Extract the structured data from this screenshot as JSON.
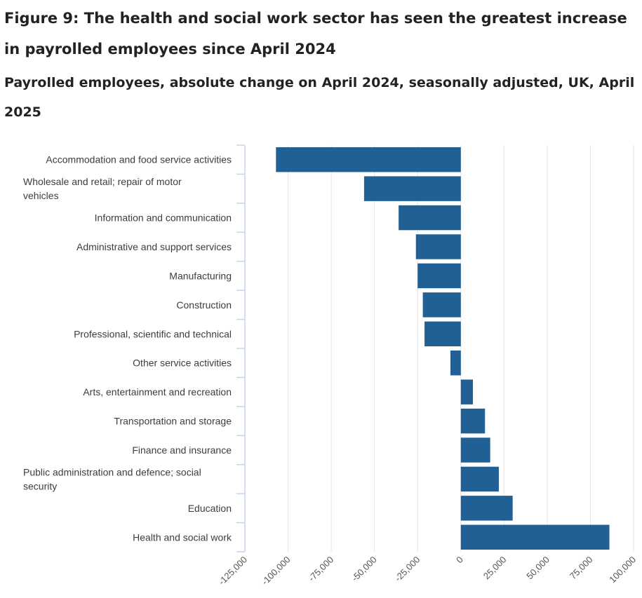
{
  "header": {
    "title": "Figure 9: The health and social work sector has seen the greatest increase in payrolled employees since April 2024",
    "subtitle": "Payrolled employees, absolute change on April 2024, seasonally adjusted, UK, April 2025"
  },
  "colors": {
    "bar": "#206095",
    "grid": "#e2e2e2",
    "axis": "#c5d4e6"
  },
  "chart_data": {
    "type": "bar",
    "orientation": "horizontal",
    "title": "Figure 9: The health and social work sector has seen the greatest increase in payrolled employees since April 2024",
    "subtitle": "Payrolled employees, absolute change on April 2024, seasonally adjusted, UK, April 2025",
    "xlabel": "",
    "ylabel": "",
    "xlim": [
      -125000,
      100000
    ],
    "grid": true,
    "categories": [
      [
        "Accommodation and food service activities"
      ],
      [
        "Wholesale and retail; repair of motor",
        "vehicles"
      ],
      [
        "Information and communication"
      ],
      [
        "Administrative and support services"
      ],
      [
        "Manufacturing"
      ],
      [
        "Construction"
      ],
      [
        "Professional, scientific and technical"
      ],
      [
        "Other service activities"
      ],
      [
        "Arts, entertainment and recreation"
      ],
      [
        "Transportation and storage"
      ],
      [
        "Finance and insurance"
      ],
      [
        "Public administration and defence; social",
        "security"
      ],
      [
        "Education"
      ],
      [
        "Health and social work"
      ]
    ],
    "values": [
      -107000,
      -56000,
      -36000,
      -26000,
      -25000,
      -22000,
      -21000,
      -6000,
      7000,
      14000,
      17000,
      22000,
      30000,
      86000
    ],
    "ticks": [
      -125000,
      -100000,
      -75000,
      -50000,
      -25000,
      0,
      25000,
      50000,
      75000,
      100000
    ],
    "tick_labels": [
      "-125,000",
      "-100,000",
      "-75,000",
      "-50,000",
      "-25,000",
      "0",
      "25,000",
      "50,000",
      "75,000",
      "100,000"
    ]
  }
}
